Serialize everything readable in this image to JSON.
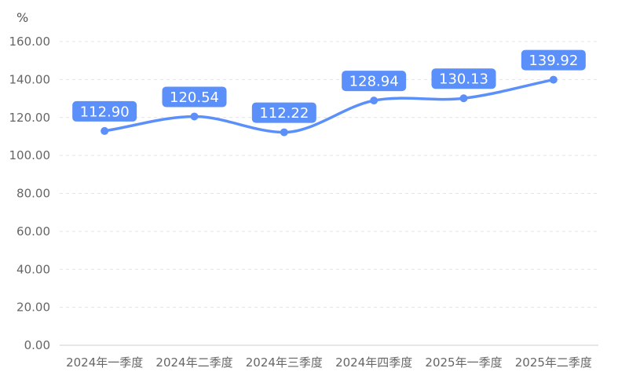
{
  "chart_data": {
    "type": "line",
    "unit": "%",
    "categories": [
      "2024年一季度",
      "2024年二季度",
      "2024年三季度",
      "2024年四季度",
      "2025年一季度",
      "2025年二季度"
    ],
    "series": [
      {
        "values": [
          112.9,
          120.54,
          112.22,
          128.94,
          130.13,
          139.92
        ]
      }
    ],
    "value_labels": [
      "112.90",
      "120.54",
      "112.22",
      "128.94",
      "130.13",
      "139.92"
    ],
    "y_ticks": [
      "0.00",
      "20.00",
      "40.00",
      "60.00",
      "80.00",
      "100.00",
      "120.00",
      "140.00",
      "160.00"
    ],
    "ylim": [
      0,
      160
    ],
    "grid": true,
    "line_style": "smooth",
    "colors": {
      "line": "#5b8ff9",
      "label_bg": "#5b8ff9",
      "label_text": "#ffffff",
      "grid": "#e3e3e3",
      "tick_text": "#666666"
    }
  }
}
